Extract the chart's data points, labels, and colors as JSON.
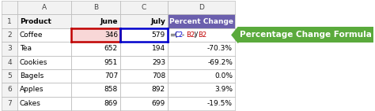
{
  "col_letters": [
    "A",
    "B",
    "C",
    "D"
  ],
  "row_nums": [
    "1",
    "2",
    "3",
    "4",
    "5",
    "6",
    "7"
  ],
  "header_row": [
    "Product",
    "June",
    "July",
    "Percent Change"
  ],
  "rows": [
    [
      "Coffee",
      "346",
      "579",
      "=(C2-B2)/B2"
    ],
    [
      "Tea",
      "652",
      "194",
      "-70.3%"
    ],
    [
      "Cookies",
      "951",
      "293",
      "-69.2%"
    ],
    [
      "Bagels",
      "707",
      "708",
      "0.0%"
    ],
    [
      "Apples",
      "858",
      "892",
      "3.9%"
    ],
    [
      "Cakes",
      "869",
      "699",
      "-19.5%"
    ]
  ],
  "arrow_label": "Percentage Change Formula",
  "arrow_bg": "#5aaa3c",
  "col_D_header_bg": "#6b5fad",
  "header_bg": "#f2f2f2",
  "grid_color": "#c0c0c0",
  "b2_border_color": "#c00000",
  "c2_border_color": "#0000cc",
  "formula_c_color": "#0000cc",
  "formula_b_color": "#c00000",
  "white": "#ffffff",
  "black": "#000000",
  "light_pink": "#f8d7d7"
}
